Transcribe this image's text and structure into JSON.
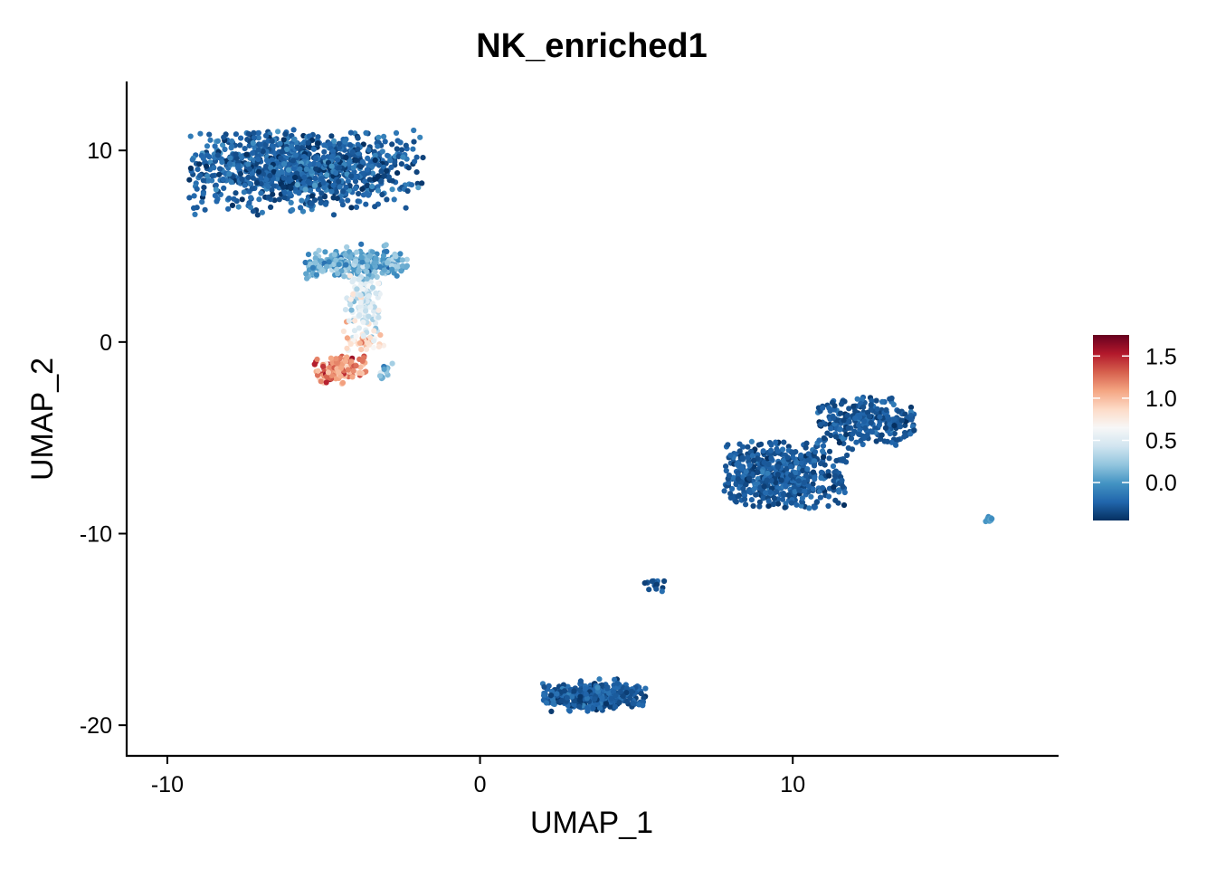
{
  "chart_data": {
    "type": "scatter",
    "title": "NK_enriched1",
    "xlabel": "UMAP_1",
    "ylabel": "UMAP_2",
    "xlim": [
      -11.3,
      18.5
    ],
    "ylim": [
      -21.6,
      13.6
    ],
    "x_ticks": [
      -10,
      0,
      10
    ],
    "x_tick_labels": [
      "-10",
      "0",
      "10"
    ],
    "y_ticks": [
      10,
      0,
      -10,
      -20
    ],
    "y_tick_labels": [
      "10",
      "0",
      "-10",
      "-20"
    ],
    "grid": false,
    "legend": {
      "placement": "right",
      "type": "colorbar",
      "range": [
        -0.45,
        1.75
      ],
      "ticks": [
        1.5,
        1.0,
        0.5,
        0.0
      ],
      "tick_labels": [
        "1.5",
        "1.0",
        "0.5",
        "0.0"
      ],
      "colors": [
        "#053061",
        "#2166ac",
        "#4393c3",
        "#92c5de",
        "#d1e5f0",
        "#f7f7f7",
        "#fddbc7",
        "#f4a582",
        "#d6604d",
        "#b2182b",
        "#67001f"
      ]
    },
    "clusters": [
      {
        "center": [
          -5.8,
          9.1
        ],
        "spread": [
          1.9,
          1.0
        ],
        "extent": [
          [
            -9.3,
            -1.8
          ],
          [
            6.6,
            11.1
          ]
        ],
        "value": -0.25,
        "value_sd": 0.12,
        "approx_points": 1100
      },
      {
        "center": [
          -3.9,
          4.1
        ],
        "spread": [
          1.1,
          0.35
        ],
        "extent": [
          [
            -5.6,
            -2.3
          ],
          [
            3.2,
            5.2
          ]
        ],
        "value": 0.1,
        "value_sd": 0.15,
        "approx_points": 260
      },
      {
        "center": [
          -3.7,
          2.1
        ],
        "spread": [
          0.3,
          0.9
        ],
        "extent": [
          [
            -4.3,
            -3.1
          ],
          [
            0.0,
            3.5
          ]
        ],
        "value": 0.45,
        "value_sd": 0.18,
        "approx_points": 120
      },
      {
        "center": [
          -3.6,
          0.0
        ],
        "spread": [
          0.35,
          0.35
        ],
        "extent": [
          [
            -4.4,
            -3.0
          ],
          [
            -0.6,
            0.6
          ]
        ],
        "value": 0.8,
        "value_sd": 0.2,
        "approx_points": 40
      },
      {
        "center": [
          -4.6,
          -1.4
        ],
        "spread": [
          0.45,
          0.35
        ],
        "extent": [
          [
            -5.3,
            -3.6
          ],
          [
            -2.2,
            -0.7
          ]
        ],
        "value": 1.15,
        "value_sd": 0.2,
        "approx_points": 160
      },
      {
        "center": [
          -3.0,
          -1.6
        ],
        "spread": [
          0.25,
          0.2
        ],
        "extent": [
          [
            -3.4,
            -2.6
          ],
          [
            -2.1,
            -0.6
          ]
        ],
        "value": 0.2,
        "value_sd": 0.15,
        "approx_points": 14
      },
      {
        "center": [
          9.4,
          -7.0
        ],
        "spread": [
          1.3,
          0.9
        ],
        "extent": [
          [
            7.8,
            11.8
          ],
          [
            -8.7,
            -5.2
          ]
        ],
        "value": -0.28,
        "value_sd": 0.08,
        "approx_points": 520
      },
      {
        "center": [
          12.2,
          -4.2
        ],
        "spread": [
          1.2,
          0.6
        ],
        "extent": [
          [
            10.8,
            13.9
          ],
          [
            -5.6,
            -2.8
          ]
        ],
        "value": -0.28,
        "value_sd": 0.08,
        "approx_points": 260
      },
      {
        "center": [
          3.6,
          -18.5
        ],
        "spread": [
          1.0,
          0.35
        ],
        "extent": [
          [
            2.0,
            5.3
          ],
          [
            -19.3,
            -17.5
          ]
        ],
        "value": -0.27,
        "value_sd": 0.08,
        "approx_points": 380
      },
      {
        "center": [
          5.5,
          -12.7
        ],
        "spread": [
          0.25,
          0.2
        ],
        "extent": [
          [
            5.2,
            5.9
          ],
          [
            -13.1,
            -12.3
          ]
        ],
        "value": -0.3,
        "value_sd": 0.06,
        "approx_points": 18
      },
      {
        "center": [
          16.3,
          -9.3
        ],
        "spread": [
          0.1,
          0.08
        ],
        "extent": [
          [
            16.1,
            16.5
          ],
          [
            -9.4,
            -9.1
          ]
        ],
        "value": 0.0,
        "value_sd": 0.05,
        "approx_points": 14
      }
    ]
  }
}
